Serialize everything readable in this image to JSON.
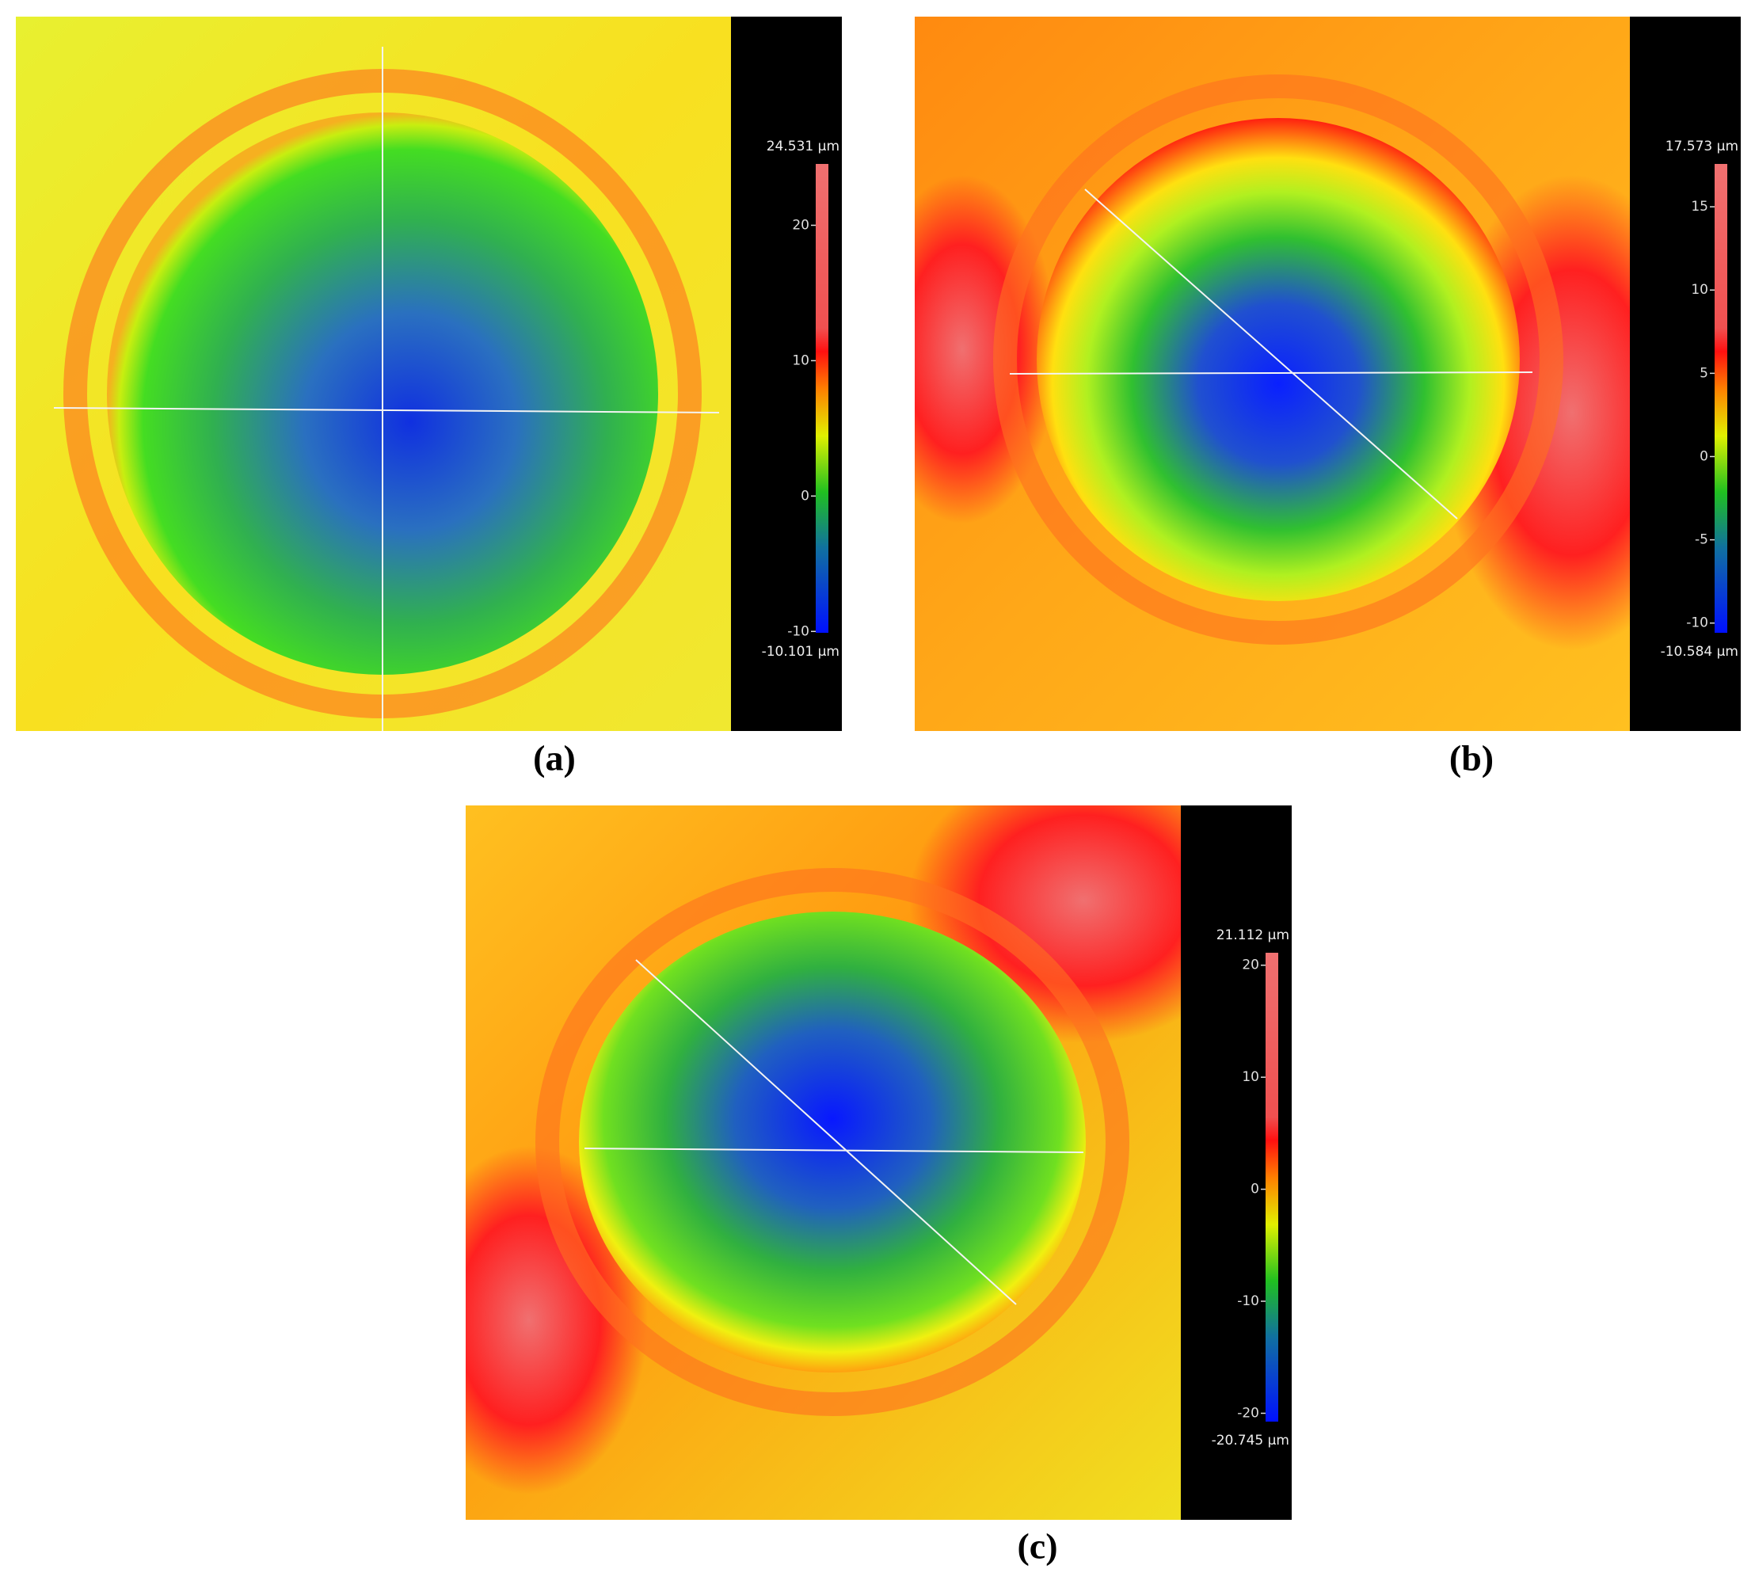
{
  "panels": [
    {
      "label": "(a)",
      "colorbar": {
        "top": {
          "value": 24.531,
          "label": "24.531 µm"
        },
        "bottom": {
          "value": -10.101,
          "label": "-10.101 µm"
        },
        "ticks": [
          -10,
          0,
          10,
          20
        ]
      }
    },
    {
      "label": "(b)",
      "colorbar": {
        "top": {
          "value": 17.573,
          "label": "17.573 µm"
        },
        "bottom": {
          "value": -10.584,
          "label": "-10.584 µm"
        },
        "ticks": [
          -10,
          -5,
          0,
          5,
          10,
          15
        ]
      }
    },
    {
      "label": "(c)",
      "colorbar": {
        "top": {
          "value": 21.112,
          "label": "21.112 µm"
        },
        "bottom": {
          "value": -20.745,
          "label": "-20.745 µm"
        },
        "ticks": [
          -20,
          -10,
          0,
          10,
          20
        ]
      }
    }
  ]
}
